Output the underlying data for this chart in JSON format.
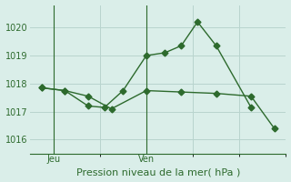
{
  "xlabel": "Pression niveau de la mer( hPa )",
  "bg_color": "#daeee9",
  "line_color": "#2d6a2d",
  "grid_color": "#b8d4ce",
  "axis_color": "#2d6a2d",
  "ylim": [
    1015.5,
    1020.8
  ],
  "yticks": [
    1016,
    1017,
    1018,
    1019,
    1020
  ],
  "xlim": [
    0,
    11
  ],
  "x_vlines": [
    1,
    5
  ],
  "x_tick_pos": [
    1,
    5
  ],
  "x_tick_labels": [
    "Jeu",
    "Ven"
  ],
  "line1_x": [
    0.5,
    1.5,
    2.5,
    3.2,
    4.0,
    5.0,
    5.8,
    6.5,
    7.2,
    8.0,
    9.5
  ],
  "line1_y": [
    1017.85,
    1017.75,
    1017.2,
    1017.15,
    1017.75,
    1019.0,
    1019.1,
    1019.35,
    1020.2,
    1019.35,
    1017.15
  ],
  "line2_x": [
    0.5,
    1.5,
    2.5,
    3.5,
    5.0,
    6.5,
    8.0,
    9.5,
    10.5
  ],
  "line2_y": [
    1017.85,
    1017.75,
    1017.55,
    1017.1,
    1017.75,
    1017.7,
    1017.65,
    1017.55,
    1016.4
  ],
  "markersize": 3.5,
  "linewidth": 1.0,
  "xlabel_fontsize": 8,
  "tick_fontsize": 7
}
